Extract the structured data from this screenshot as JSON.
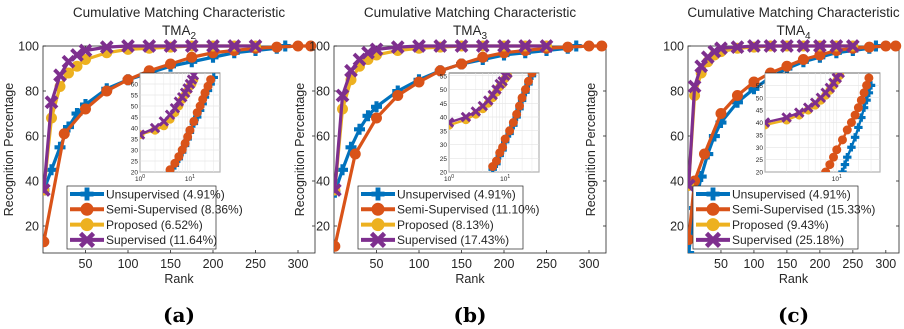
{
  "colors": {
    "Unsupervised": "#0072bd",
    "Semi-Supervised": "#d95319",
    "Proposed": "#edb120",
    "Supervised": "#7e2f8e"
  },
  "chart_data": [
    {
      "type": "line",
      "title": "Cumulative Matching Characteristic",
      "subtitle_text": "TMA",
      "subtitle_sub": "2",
      "caption": "(a)",
      "xlabel": "Rank",
      "ylabel": "Recognition Percentage",
      "xlim": [
        0,
        320
      ],
      "ylim": [
        8,
        100
      ],
      "xticks": [
        50,
        100,
        150,
        200,
        250,
        300
      ],
      "yticks": [
        20,
        40,
        60,
        80,
        100
      ],
      "grid": false,
      "legend_position": "bottom-center",
      "series": [
        {
          "name": "Unsupervised (4.91%)",
          "key": "Unsupervised",
          "marker": "plus",
          "x": [
            1,
            10,
            20,
            30,
            40,
            50,
            75,
            100,
            125,
            150,
            175,
            200,
            225,
            250,
            275,
            285
          ],
          "y": [
            36,
            45,
            55,
            64,
            70,
            74,
            81,
            85,
            88,
            91,
            93,
            95,
            97,
            98,
            99,
            100
          ]
        },
        {
          "name": "Semi-Supervised (8.36%)",
          "key": "Semi-Supervised",
          "marker": "circle",
          "x": [
            1,
            25,
            50,
            75,
            100,
            125,
            150,
            175,
            200,
            225,
            250,
            275,
            300,
            315
          ],
          "y": [
            13,
            61,
            72,
            80,
            85,
            89,
            92,
            95,
            97,
            98,
            99,
            99.5,
            100,
            100
          ]
        },
        {
          "name": "Proposed (6.52%)",
          "key": "Proposed",
          "marker": "circle",
          "x": [
            1,
            10,
            20,
            30,
            40,
            50,
            75,
            100,
            125,
            150,
            175,
            200,
            225,
            250
          ],
          "y": [
            36,
            68,
            82,
            88,
            91,
            94,
            97,
            98.5,
            99,
            99.5,
            100,
            100,
            100,
            100
          ]
        },
        {
          "name": "Supervised (11.64%)",
          "key": "Supervised",
          "marker": "x",
          "x": [
            1,
            10,
            20,
            30,
            40,
            50,
            75,
            100,
            125,
            150,
            175,
            200,
            225,
            250
          ],
          "y": [
            36,
            75,
            87,
            93,
            96,
            98,
            99.5,
            100,
            100,
            100,
            100,
            100,
            100,
            100
          ]
        }
      ],
      "inset": {
        "xscale": "log",
        "xlim": [
          1,
          40
        ],
        "ylim": [
          20,
          65
        ],
        "xticks": [
          {
            "v": 1,
            "base": "10",
            "exp": "0"
          },
          {
            "v": 10,
            "base": "10",
            "exp": "1"
          }
        ],
        "yticks": [
          20,
          25,
          30,
          35,
          40,
          45,
          50,
          55,
          60
        ],
        "series": [
          {
            "key": "Unsupervised",
            "marker": "plus",
            "x": [
              4,
              5,
              6,
              7,
              8,
              9,
              10,
              12,
              14,
              16,
              18,
              20,
              23,
              26,
              30
            ],
            "y": [
              20,
              23,
              26,
              29,
              32,
              35,
              38,
              42,
              45,
              48,
              51,
              54,
              57,
              60,
              63
            ]
          },
          {
            "key": "Semi-Supervised",
            "marker": "circle",
            "x": [
              4,
              5,
              6,
              7,
              8,
              9,
              10,
              12,
              14,
              16,
              18,
              20,
              23,
              26
            ],
            "y": [
              21,
              24,
              27,
              30,
              33,
              36,
              39,
              43,
              47,
              50,
              53,
              56,
              59,
              62
            ]
          },
          {
            "key": "Proposed",
            "marker": "circle",
            "x": [
              1,
              2,
              3,
              4,
              5,
              6,
              7,
              8,
              9,
              10,
              11,
              12
            ],
            "y": [
              37,
              39,
              41,
              44,
              47,
              50,
              53,
              55,
              57,
              59,
              60,
              62
            ]
          },
          {
            "key": "Supervised",
            "marker": "x",
            "x": [
              1,
              2,
              3,
              4,
              5,
              6,
              7,
              8,
              9,
              10,
              11,
              12
            ],
            "y": [
              37,
              40,
              43,
              46,
              49,
              52,
              54,
              56,
              58,
              60,
              62,
              64
            ]
          }
        ]
      }
    },
    {
      "type": "line",
      "title": "Cumulative Matching Characteristic",
      "subtitle_text": "TMA",
      "subtitle_sub": "3",
      "caption": "(b)",
      "xlabel": "Rank",
      "ylabel": "Recognition Percentage",
      "xlim": [
        0,
        320
      ],
      "ylim": [
        8,
        100
      ],
      "xticks": [
        50,
        100,
        150,
        200,
        250,
        300
      ],
      "yticks": [
        20,
        40,
        60,
        80,
        100
      ],
      "grid": false,
      "legend_position": "bottom-center",
      "series": [
        {
          "name": "Unsupervised (4.91%)",
          "key": "Unsupervised",
          "marker": "plus",
          "x": [
            1,
            10,
            20,
            30,
            40,
            50,
            75,
            100,
            125,
            150,
            175,
            200,
            225,
            250,
            275,
            285
          ],
          "y": [
            35,
            45,
            55,
            63,
            69,
            73,
            80,
            85,
            89,
            92,
            94,
            96,
            97,
            98,
            99,
            100
          ]
        },
        {
          "name": "Semi-Supervised (11.10%)",
          "key": "Semi-Supervised",
          "marker": "circle",
          "x": [
            1,
            25,
            50,
            75,
            100,
            125,
            150,
            175,
            200,
            225,
            250,
            275,
            300,
            315
          ],
          "y": [
            11,
            52,
            68,
            78,
            84,
            89,
            92,
            95,
            97,
            98,
            99,
            99.5,
            100,
            100
          ]
        },
        {
          "name": "Proposed (8.13%)",
          "key": "Proposed",
          "marker": "circle",
          "x": [
            1,
            10,
            20,
            30,
            40,
            50,
            75,
            100,
            125,
            150,
            175,
            200,
            225,
            250
          ],
          "y": [
            36,
            72,
            85,
            91,
            94,
            96,
            98,
            99,
            99.5,
            100,
            100,
            100,
            100,
            100
          ]
        },
        {
          "name": "Supervised (17.43%)",
          "key": "Supervised",
          "marker": "x",
          "x": [
            1,
            10,
            20,
            30,
            40,
            50,
            75,
            100,
            125,
            150,
            175,
            200,
            225,
            250
          ],
          "y": [
            36,
            78,
            89,
            94,
            97,
            98.5,
            99.5,
            100,
            100,
            100,
            100,
            100,
            100,
            100
          ]
        }
      ],
      "inset": {
        "xscale": "log",
        "xlim": [
          1,
          40
        ],
        "ylim": [
          20,
          56
        ],
        "xticks": [
          {
            "v": 1,
            "base": "10",
            "exp": "0"
          },
          {
            "v": 10,
            "base": "10",
            "exp": "1"
          }
        ],
        "yticks": [
          20,
          25,
          30,
          35,
          40,
          45,
          50,
          55
        ],
        "series": [
          {
            "key": "Unsupervised",
            "marker": "plus",
            "x": [
              6,
              7,
              8,
              9,
              10,
              12,
              14,
              16,
              18,
              20,
              23,
              26,
              30
            ],
            "y": [
              21,
              23,
              26,
              28,
              31,
              34,
              37,
              40,
              43,
              46,
              49,
              52,
              55
            ]
          },
          {
            "key": "Semi-Supervised",
            "marker": "circle",
            "x": [
              6,
              7,
              8,
              9,
              10,
              12,
              14,
              16,
              18,
              20,
              23,
              26,
              30
            ],
            "y": [
              22,
              24,
              27,
              29,
              32,
              35,
              38,
              41,
              44,
              47,
              50,
              53,
              56
            ]
          },
          {
            "key": "Proposed",
            "marker": "circle",
            "x": [
              1,
              2,
              3,
              4,
              5,
              6,
              7,
              8,
              9,
              10,
              11
            ],
            "y": [
              37,
              39,
              41,
              43,
              45,
              47,
              49,
              51,
              52,
              54,
              55
            ]
          },
          {
            "key": "Supervised",
            "marker": "x",
            "x": [
              1,
              2,
              3,
              4,
              5,
              6,
              7,
              8,
              9,
              10,
              11
            ],
            "y": [
              38,
              40,
              42,
              44,
              46,
              48,
              50,
              52,
              53,
              55,
              56
            ]
          }
        ]
      }
    },
    {
      "type": "line",
      "title": "Cumulative Matching Characteristic",
      "subtitle_text": "TMA",
      "subtitle_sub": "4",
      "caption": "(c)",
      "xlabel": "Rank",
      "ylabel": "Recognition Percentage",
      "xlim": [
        0,
        320
      ],
      "ylim": [
        8,
        100
      ],
      "xticks": [
        50,
        100,
        150,
        200,
        250,
        300
      ],
      "yticks": [
        20,
        40,
        60,
        80,
        100
      ],
      "grid": false,
      "legend_position": "bottom-center",
      "series": [
        {
          "name": "Unsupervised (4.91%)",
          "key": "Unsupervised",
          "marker": "plus",
          "x": [
            1,
            10,
            20,
            30,
            40,
            50,
            75,
            100,
            125,
            150,
            175,
            200,
            225,
            250,
            275,
            285
          ],
          "y": [
            8,
            28,
            42,
            52,
            60,
            66,
            75,
            81,
            86,
            90,
            93,
            95,
            97,
            98,
            99,
            100
          ]
        },
        {
          "name": "Semi-Supervised (15.33%)",
          "key": "Semi-Supervised",
          "marker": "circle",
          "x": [
            1,
            10,
            25,
            50,
            75,
            100,
            125,
            150,
            175,
            200,
            225,
            250,
            275,
            300,
            315
          ],
          "y": [
            14,
            40,
            52,
            70,
            78,
            84,
            88,
            91,
            94,
            96,
            98,
            99,
            99.5,
            100,
            100
          ]
        },
        {
          "name": "Proposed (9.43%)",
          "key": "Proposed",
          "marker": "circle",
          "x": [
            1,
            10,
            20,
            30,
            40,
            50,
            75,
            100,
            125,
            150,
            175,
            200,
            225,
            250
          ],
          "y": [
            38,
            78,
            88,
            93,
            96,
            97.5,
            99,
            99.5,
            100,
            100,
            100,
            100,
            100,
            100
          ]
        },
        {
          "name": "Supervised (25.18%)",
          "key": "Supervised",
          "marker": "x",
          "x": [
            1,
            10,
            20,
            30,
            40,
            50,
            75,
            100,
            125,
            150,
            175,
            200,
            225,
            250
          ],
          "y": [
            38,
            82,
            91,
            95,
            97.5,
            99,
            99.5,
            100,
            100,
            100,
            100,
            100,
            100,
            100
          ]
        }
      ],
      "inset": {
        "xscale": "log",
        "xlim": [
          1,
          40
        ],
        "ylim": [
          20,
          60
        ],
        "xticks": [
          {
            "v": 10,
            "base": "10",
            "exp": "1"
          }
        ],
        "yticks": [
          20,
          25,
          30,
          35,
          40,
          45,
          50,
          55
        ],
        "series": [
          {
            "key": "Unsupervised",
            "marker": "plus",
            "x": [
              12,
              13,
              14,
              16,
              18,
              20,
              22,
              24,
              26,
              28,
              30
            ],
            "y": [
              20,
              23,
              26,
              30,
              34,
              38,
              42,
              46,
              49,
              52,
              55
            ]
          },
          {
            "key": "Semi-Supervised",
            "marker": "circle",
            "x": [
              7,
              8,
              9,
              10,
              12,
              14,
              16,
              18,
              20,
              22,
              24,
              26,
              28
            ],
            "y": [
              20,
              23,
              26,
              29,
              33,
              37,
              40,
              43,
              46,
              49,
              52,
              55,
              58
            ]
          },
          {
            "key": "Proposed",
            "marker": "circle",
            "x": [
              1,
              2,
              3,
              4,
              5,
              6,
              7,
              8,
              9,
              10,
              11
            ],
            "y": [
              39,
              41,
              43,
              45,
              47,
              49,
              51,
              53,
              55,
              57,
              59
            ]
          },
          {
            "key": "Supervised",
            "marker": "x",
            "x": [
              1,
              2,
              3,
              4,
              5,
              6,
              7,
              8,
              9,
              10,
              11
            ],
            "y": [
              40,
              42,
              44,
              46,
              48,
              50,
              52,
              54,
              56,
              58,
              60
            ]
          }
        ]
      }
    }
  ]
}
